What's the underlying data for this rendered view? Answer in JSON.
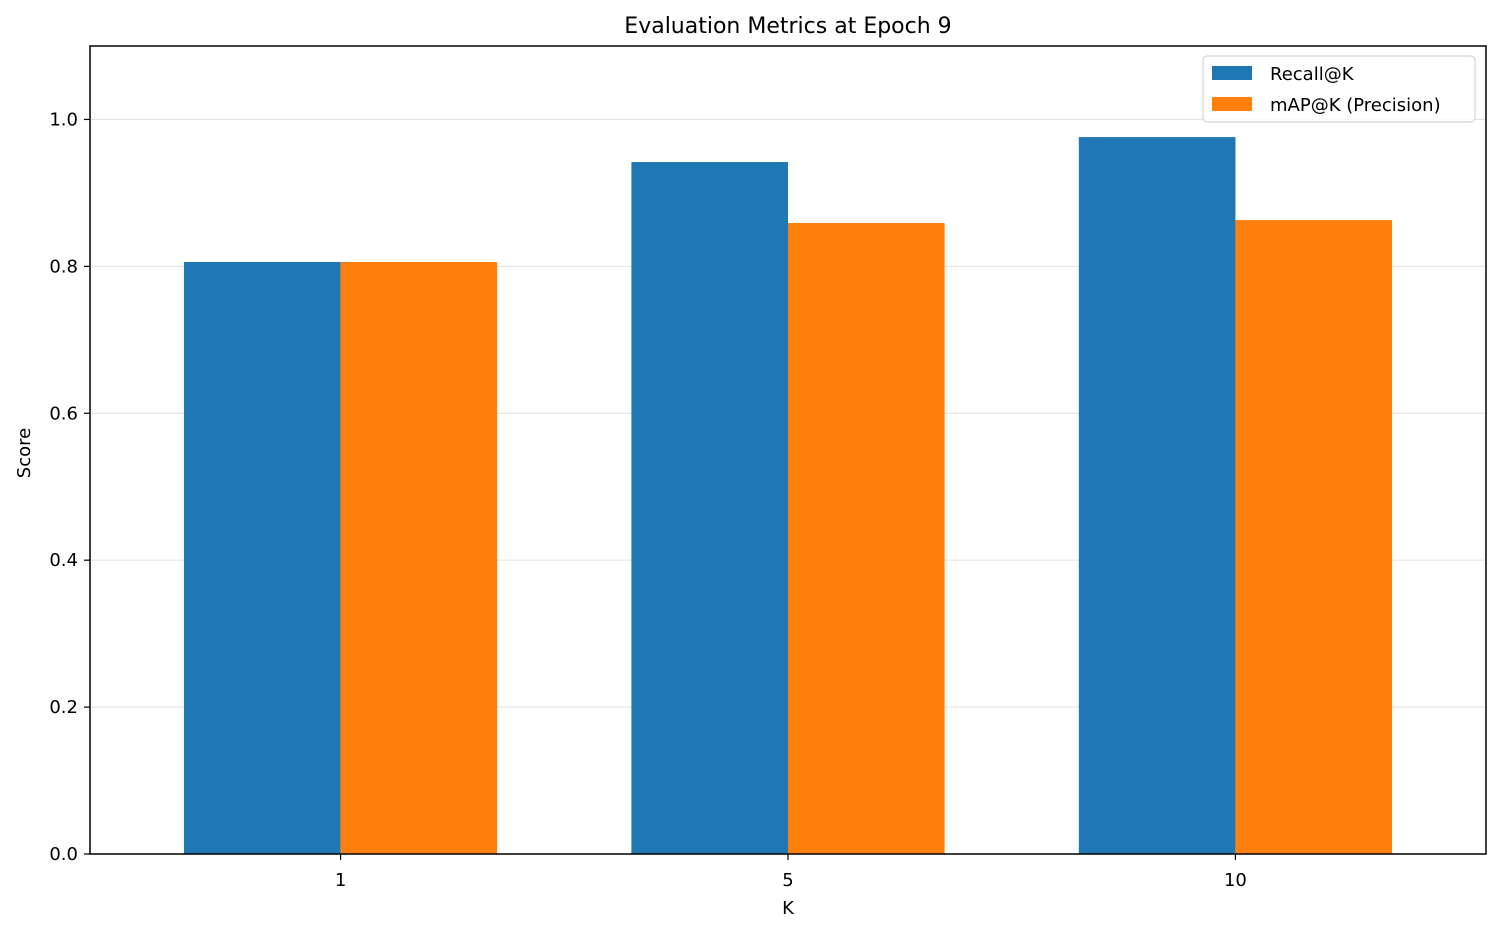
{
  "chart_data": {
    "type": "bar",
    "title": "Evaluation Metrics at Epoch 9",
    "xlabel": "K",
    "ylabel": "Score",
    "categories": [
      "1",
      "5",
      "10"
    ],
    "series": [
      {
        "name": "Recall@K",
        "values": [
          0.806,
          0.942,
          0.976
        ],
        "color": "#1f77b4"
      },
      {
        "name": "mAP@K (Precision)",
        "values": [
          0.806,
          0.859,
          0.863
        ],
        "color": "#ff7f0e"
      }
    ],
    "ylim": [
      0,
      1.1
    ],
    "yticks": [
      0.0,
      0.2,
      0.4,
      0.6,
      0.8,
      1.0
    ],
    "ytick_labels": [
      "0.0",
      "0.2",
      "0.4",
      "0.6",
      "0.8",
      "1.0"
    ],
    "grid": "y",
    "legend_position": "top-right"
  }
}
